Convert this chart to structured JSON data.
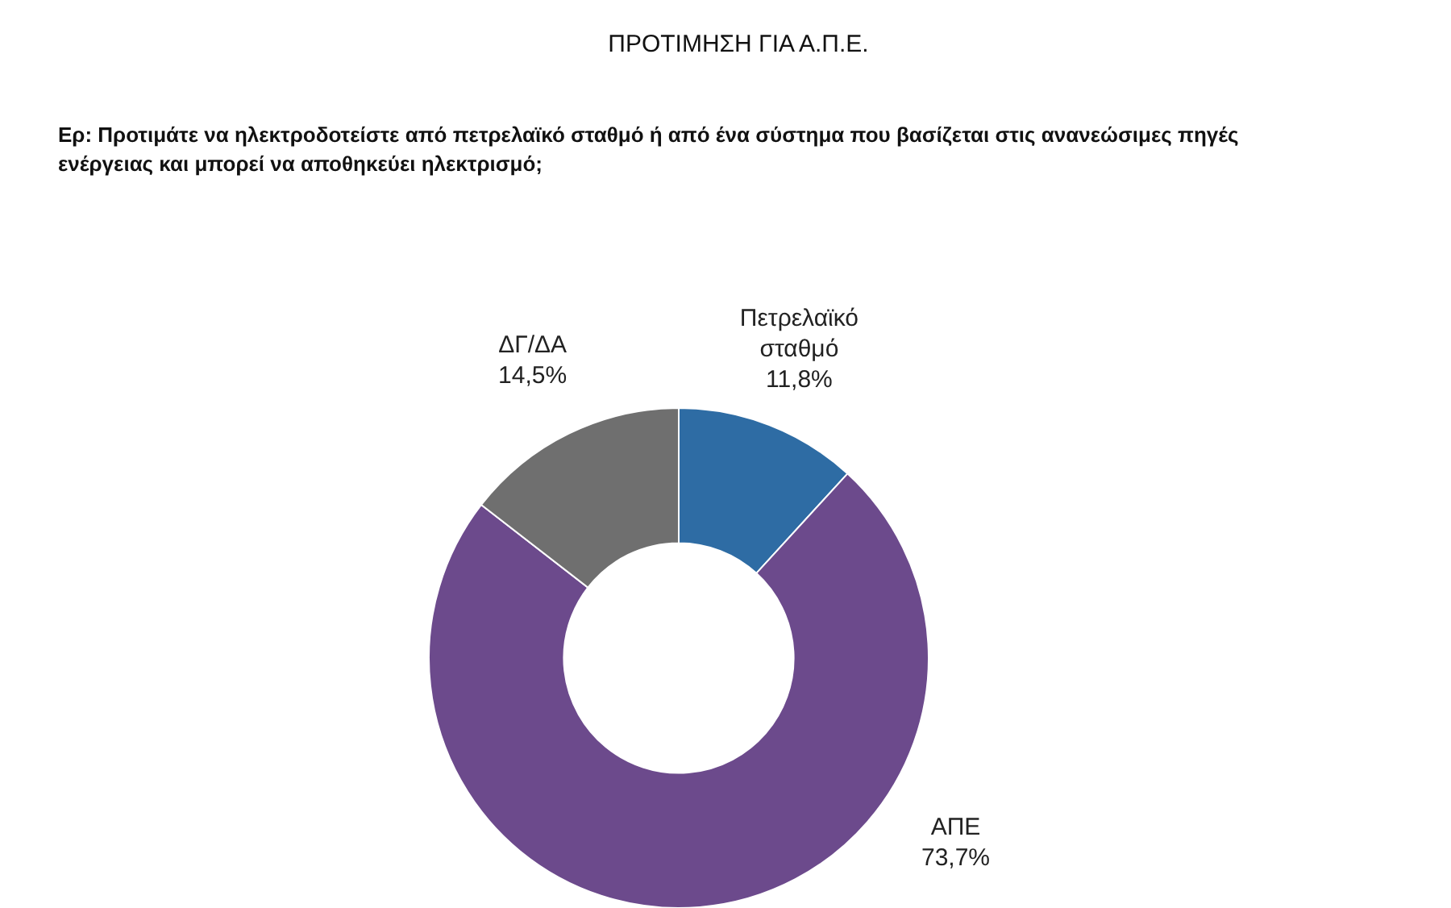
{
  "chart_data": {
    "type": "donut",
    "title": "ΠΡΟΤΙΜΗΣΗ ΓΙΑ Α.Π.Ε.",
    "subtitle": "Ερ: Προτιμάτε να ηλεκτροδοτείστε από πετρελαϊκό σταθμό ή από ένα σύστημα που βασίζεται στις ανανεώσιμες πηγές ενέργειας και μπορεί να αποθηκεύει ηλεκτρισμό;",
    "categories": [
      "Πετρελαϊκό σταθμό",
      "ΑΠΕ",
      "ΔΓ/ΔΑ"
    ],
    "values": [
      11.8,
      73.7,
      14.5
    ],
    "value_labels": [
      "11,8%",
      "73,7%",
      "14,5%"
    ],
    "colors": [
      "#2e6ca4",
      "#6c4a8c",
      "#6f6f6f"
    ]
  }
}
